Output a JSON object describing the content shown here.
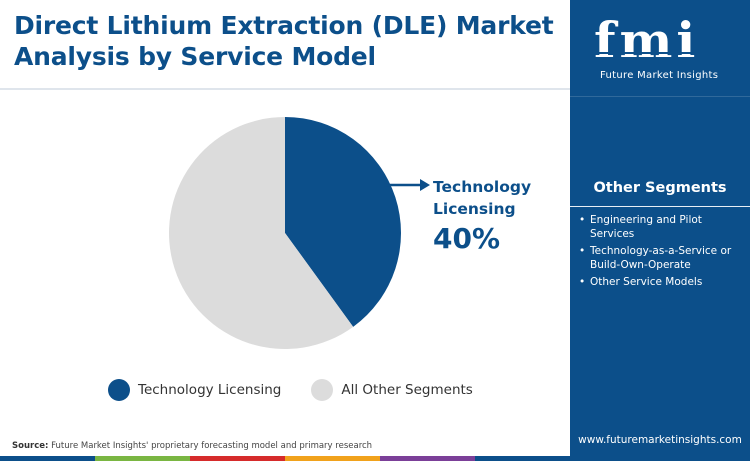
{
  "title": "Direct Lithium Extraction (DLE) Market Analysis by Service Model",
  "chart_data": {
    "type": "pie",
    "slices": [
      {
        "label": "Technology Licensing",
        "value": 40,
        "color": "#0c4f8a"
      },
      {
        "label": "All Other Segments",
        "value": 60,
        "color": "#dcdcdc"
      }
    ],
    "callout": {
      "label": "Technology Licensing",
      "value_text": "40%"
    },
    "legend_position": "bottom"
  },
  "legend": [
    {
      "label": "Technology Licensing",
      "color": "#0c4f8a"
    },
    {
      "label": "All Other Segments",
      "color": "#dcdcdc"
    }
  ],
  "sidebar": {
    "logo_text": "fmi",
    "logo_sub": "Future Market Insights",
    "heading": "Other Segments",
    "items": [
      "Engineering and Pilot Services",
      "Technology-as-a-Service or Build-Own-Operate",
      "Other Service Models"
    ],
    "website": "www.futuremarketinsights.com"
  },
  "source": {
    "label": "Source:",
    "text": "Future Market Insights' proprietary forecasting model and primary research"
  },
  "colors": {
    "brand": "#0c4f8a",
    "other": "#dcdcdc",
    "bottom_bar": [
      "#0c4f8a",
      "#7ab642",
      "#d62b2b",
      "#f1a21c",
      "#7b3f98",
      "#0c4f8a"
    ]
  }
}
